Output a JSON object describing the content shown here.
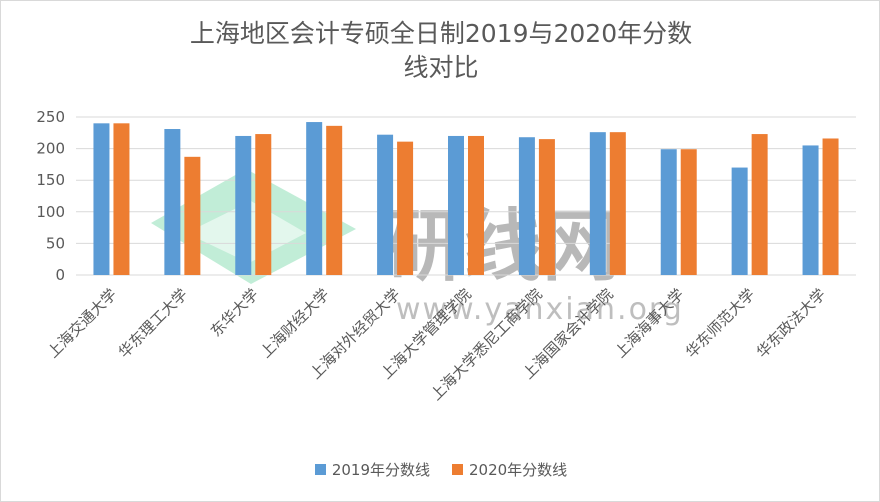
{
  "chart_data": {
    "type": "bar",
    "title_line1": "上海地区会计专硕全日制2019与2020年分数",
    "title_line2": "线对比",
    "categories": [
      "上海交通大学",
      "华东理工大学",
      "东华大学",
      "上海财经大学",
      "上海对外经贸大学",
      "上海大学管理学院",
      "上海大学悉尼工商学院",
      "上海国家会计学院",
      "上海海事大学",
      "华东师范大学",
      "华东政法大学"
    ],
    "series": [
      {
        "name": "2019年分数线",
        "color": "#5b9bd5",
        "values": [
          240,
          231,
          220,
          242,
          222,
          220,
          218,
          226,
          199,
          170,
          205
        ]
      },
      {
        "name": "2020年分数线",
        "color": "#ed7d31",
        "values": [
          240,
          187,
          223,
          236,
          211,
          220,
          215,
          226,
          199,
          223,
          216
        ]
      }
    ],
    "ylim": [
      0,
      250
    ],
    "yticks": [
      0,
      50,
      100,
      150,
      200,
      250
    ],
    "grid": true,
    "legend_position": "bottom",
    "watermark_text": "研线网",
    "watermark_url": "www.yanxian.org"
  }
}
